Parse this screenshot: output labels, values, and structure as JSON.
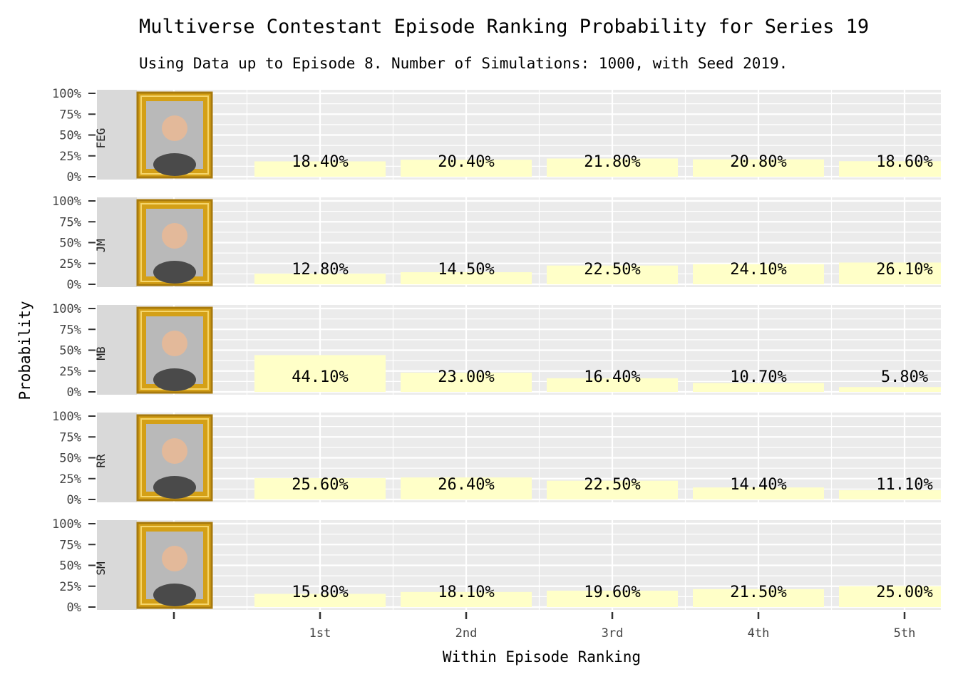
{
  "chart_data": {
    "type": "bar",
    "title": "Multiverse Contestant Episode Ranking Probability for Series 19",
    "subtitle": "Using Data up to Episode 8. Number of Simulations: 1000, with Seed 2019.",
    "xlabel": "Within Episode Ranking",
    "ylabel": "Probability",
    "ylim": [
      0,
      100
    ],
    "yticks": [
      "100%",
      "75%",
      "50%",
      "25%",
      "0%"
    ],
    "categories": [
      "1st",
      "2nd",
      "3rd",
      "4th",
      "5th"
    ],
    "bar_color": "#FFFFC8",
    "panel_color": "#EBEBEB",
    "strip_color": "#D9D9D9",
    "frame_color": "#D4A017",
    "series": [
      {
        "name": "FEG",
        "values": [
          18.4,
          20.4,
          21.8,
          20.8,
          18.6
        ],
        "labels": [
          "18.40%",
          "20.40%",
          "21.80%",
          "20.80%",
          "18.60%"
        ]
      },
      {
        "name": "JM",
        "values": [
          12.8,
          14.5,
          22.5,
          24.1,
          26.1
        ],
        "labels": [
          "12.80%",
          "14.50%",
          "22.50%",
          "24.10%",
          "26.10%"
        ]
      },
      {
        "name": "MB",
        "values": [
          44.1,
          23.0,
          16.4,
          10.7,
          5.8
        ],
        "labels": [
          "44.10%",
          "23.00%",
          "16.40%",
          "10.70%",
          "5.80%"
        ]
      },
      {
        "name": "RR",
        "values": [
          25.6,
          26.4,
          22.5,
          14.4,
          11.1
        ],
        "labels": [
          "25.60%",
          "26.40%",
          "22.50%",
          "14.40%",
          "11.10%"
        ]
      },
      {
        "name": "SM",
        "values": [
          15.8,
          18.1,
          19.6,
          21.5,
          25.0
        ],
        "labels": [
          "15.80%",
          "18.10%",
          "19.60%",
          "21.50%",
          "25.00%"
        ]
      }
    ],
    "grid": true,
    "legend": "none"
  }
}
